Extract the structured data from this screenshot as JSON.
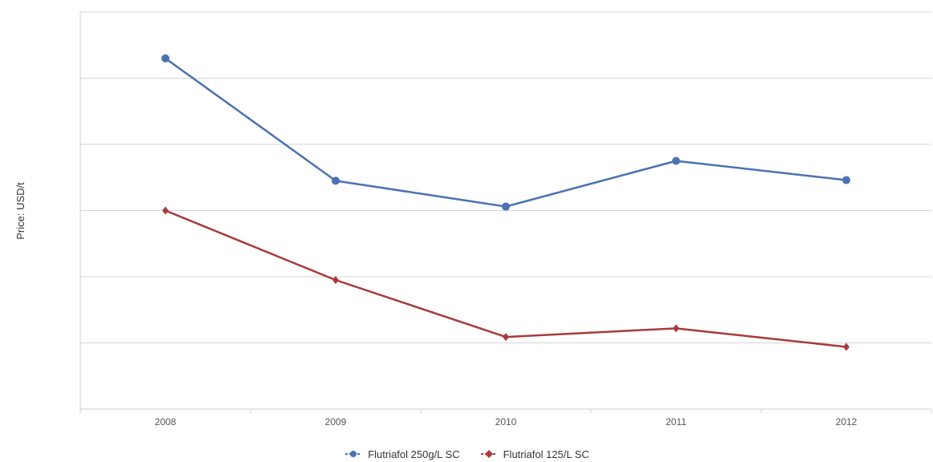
{
  "chart_data": {
    "type": "line",
    "ylabel": "Price: USD/t",
    "xlabel": "",
    "categories": [
      "2008",
      "2009",
      "2010",
      "2011",
      "2012"
    ],
    "ylim": [
      0,
      6
    ],
    "grid": true,
    "legend": "bottom",
    "series": [
      {
        "name": "Flutriafol 250g/L SC",
        "color": "#4a72b0",
        "marker": "circle",
        "values": [
          5.3,
          3.45,
          3.06,
          3.75,
          3.46
        ]
      },
      {
        "name": "Flutriafol 125/L SC",
        "color": "#a83a3a",
        "marker": "diamond",
        "values": [
          3.0,
          1.95,
          1.09,
          1.22,
          0.94
        ]
      }
    ]
  }
}
